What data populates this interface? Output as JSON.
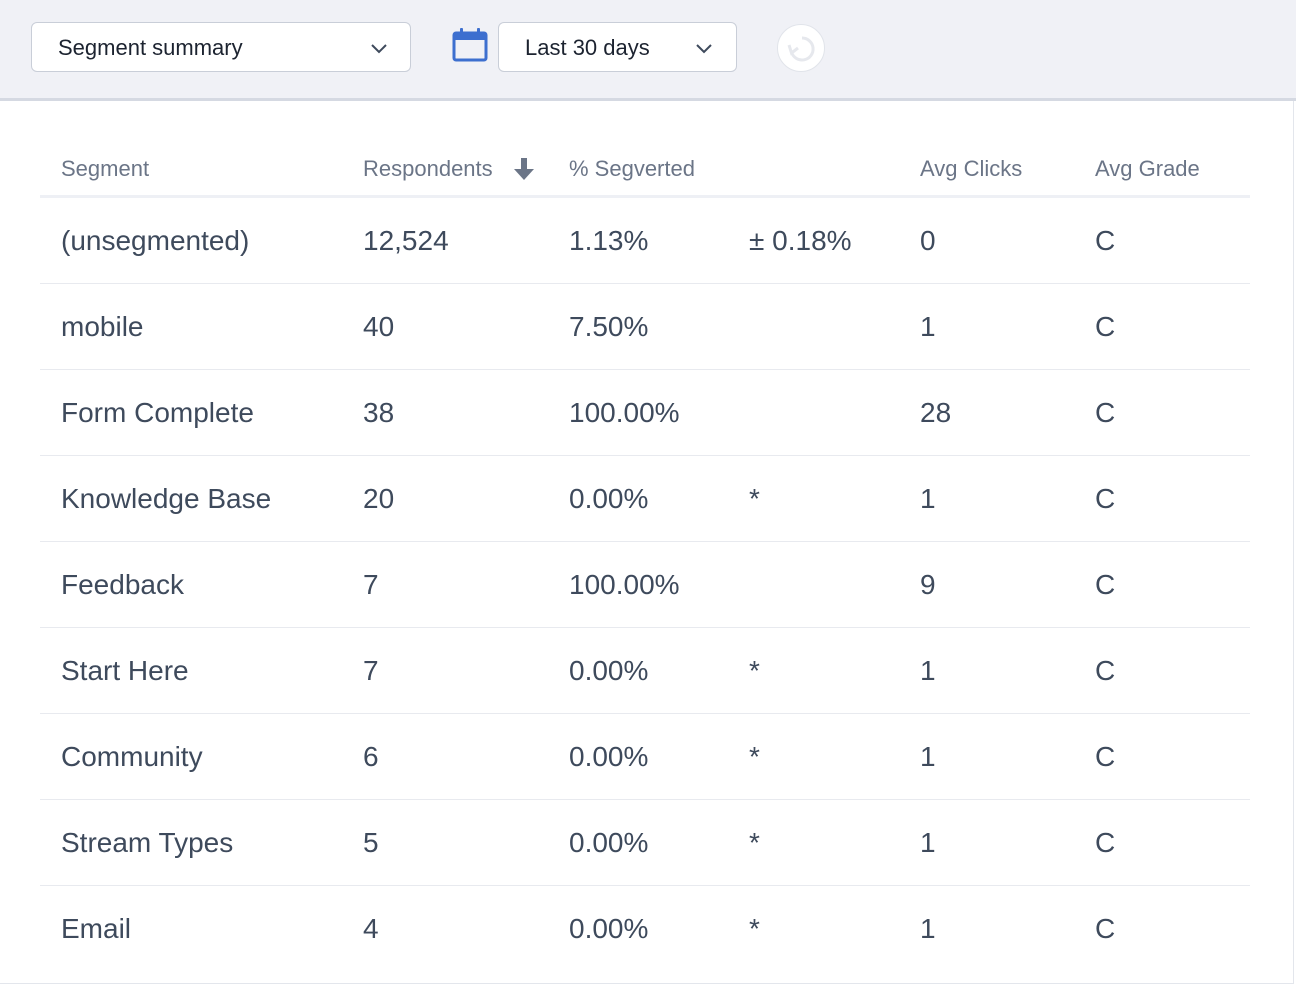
{
  "toolbar": {
    "segment_select": {
      "value": "Segment summary",
      "icon": "chevron-down-icon"
    },
    "calendar_icon": "calendar-icon",
    "date_select": {
      "value": "Last 30 days",
      "icon": "chevron-down-icon"
    },
    "refresh_icon": "refresh-icon"
  },
  "colors": {
    "toolbar_bg": "#f0f1f6",
    "calendar_blue": "#3d6fcf",
    "text": "#3e4a5c",
    "header_text": "#6b7587"
  },
  "table": {
    "columns": {
      "segment": "Segment",
      "respondents": "Respondents",
      "converted": "% Segverted",
      "avg_clicks": "Avg Clicks",
      "avg_grade": "Avg Grade"
    },
    "sort_icon": "arrow-down-icon",
    "rows": [
      {
        "segment": "(unsegmented)",
        "respondents": "12,524",
        "converted": "1.13%",
        "margin": "± 0.18%",
        "avg_clicks": "0",
        "avg_grade": "C"
      },
      {
        "segment": "mobile",
        "respondents": "40",
        "converted": "7.50%",
        "margin": "",
        "avg_clicks": "1",
        "avg_grade": "C"
      },
      {
        "segment": "Form Complete",
        "respondents": "38",
        "converted": "100.00%",
        "margin": "",
        "avg_clicks": "28",
        "avg_grade": "C"
      },
      {
        "segment": "Knowledge Base",
        "respondents": "20",
        "converted": "0.00%",
        "margin": "*",
        "avg_clicks": "1",
        "avg_grade": "C"
      },
      {
        "segment": "Feedback",
        "respondents": "7",
        "converted": "100.00%",
        "margin": "",
        "avg_clicks": "9",
        "avg_grade": "C"
      },
      {
        "segment": "Start Here",
        "respondents": "7",
        "converted": "0.00%",
        "margin": "*",
        "avg_clicks": "1",
        "avg_grade": "C"
      },
      {
        "segment": "Community",
        "respondents": "6",
        "converted": "0.00%",
        "margin": "*",
        "avg_clicks": "1",
        "avg_grade": "C"
      },
      {
        "segment": "Stream Types",
        "respondents": "5",
        "converted": "0.00%",
        "margin": "*",
        "avg_clicks": "1",
        "avg_grade": "C"
      },
      {
        "segment": "Email",
        "respondents": "4",
        "converted": "0.00%",
        "margin": "*",
        "avg_clicks": "1",
        "avg_grade": "C"
      }
    ]
  }
}
